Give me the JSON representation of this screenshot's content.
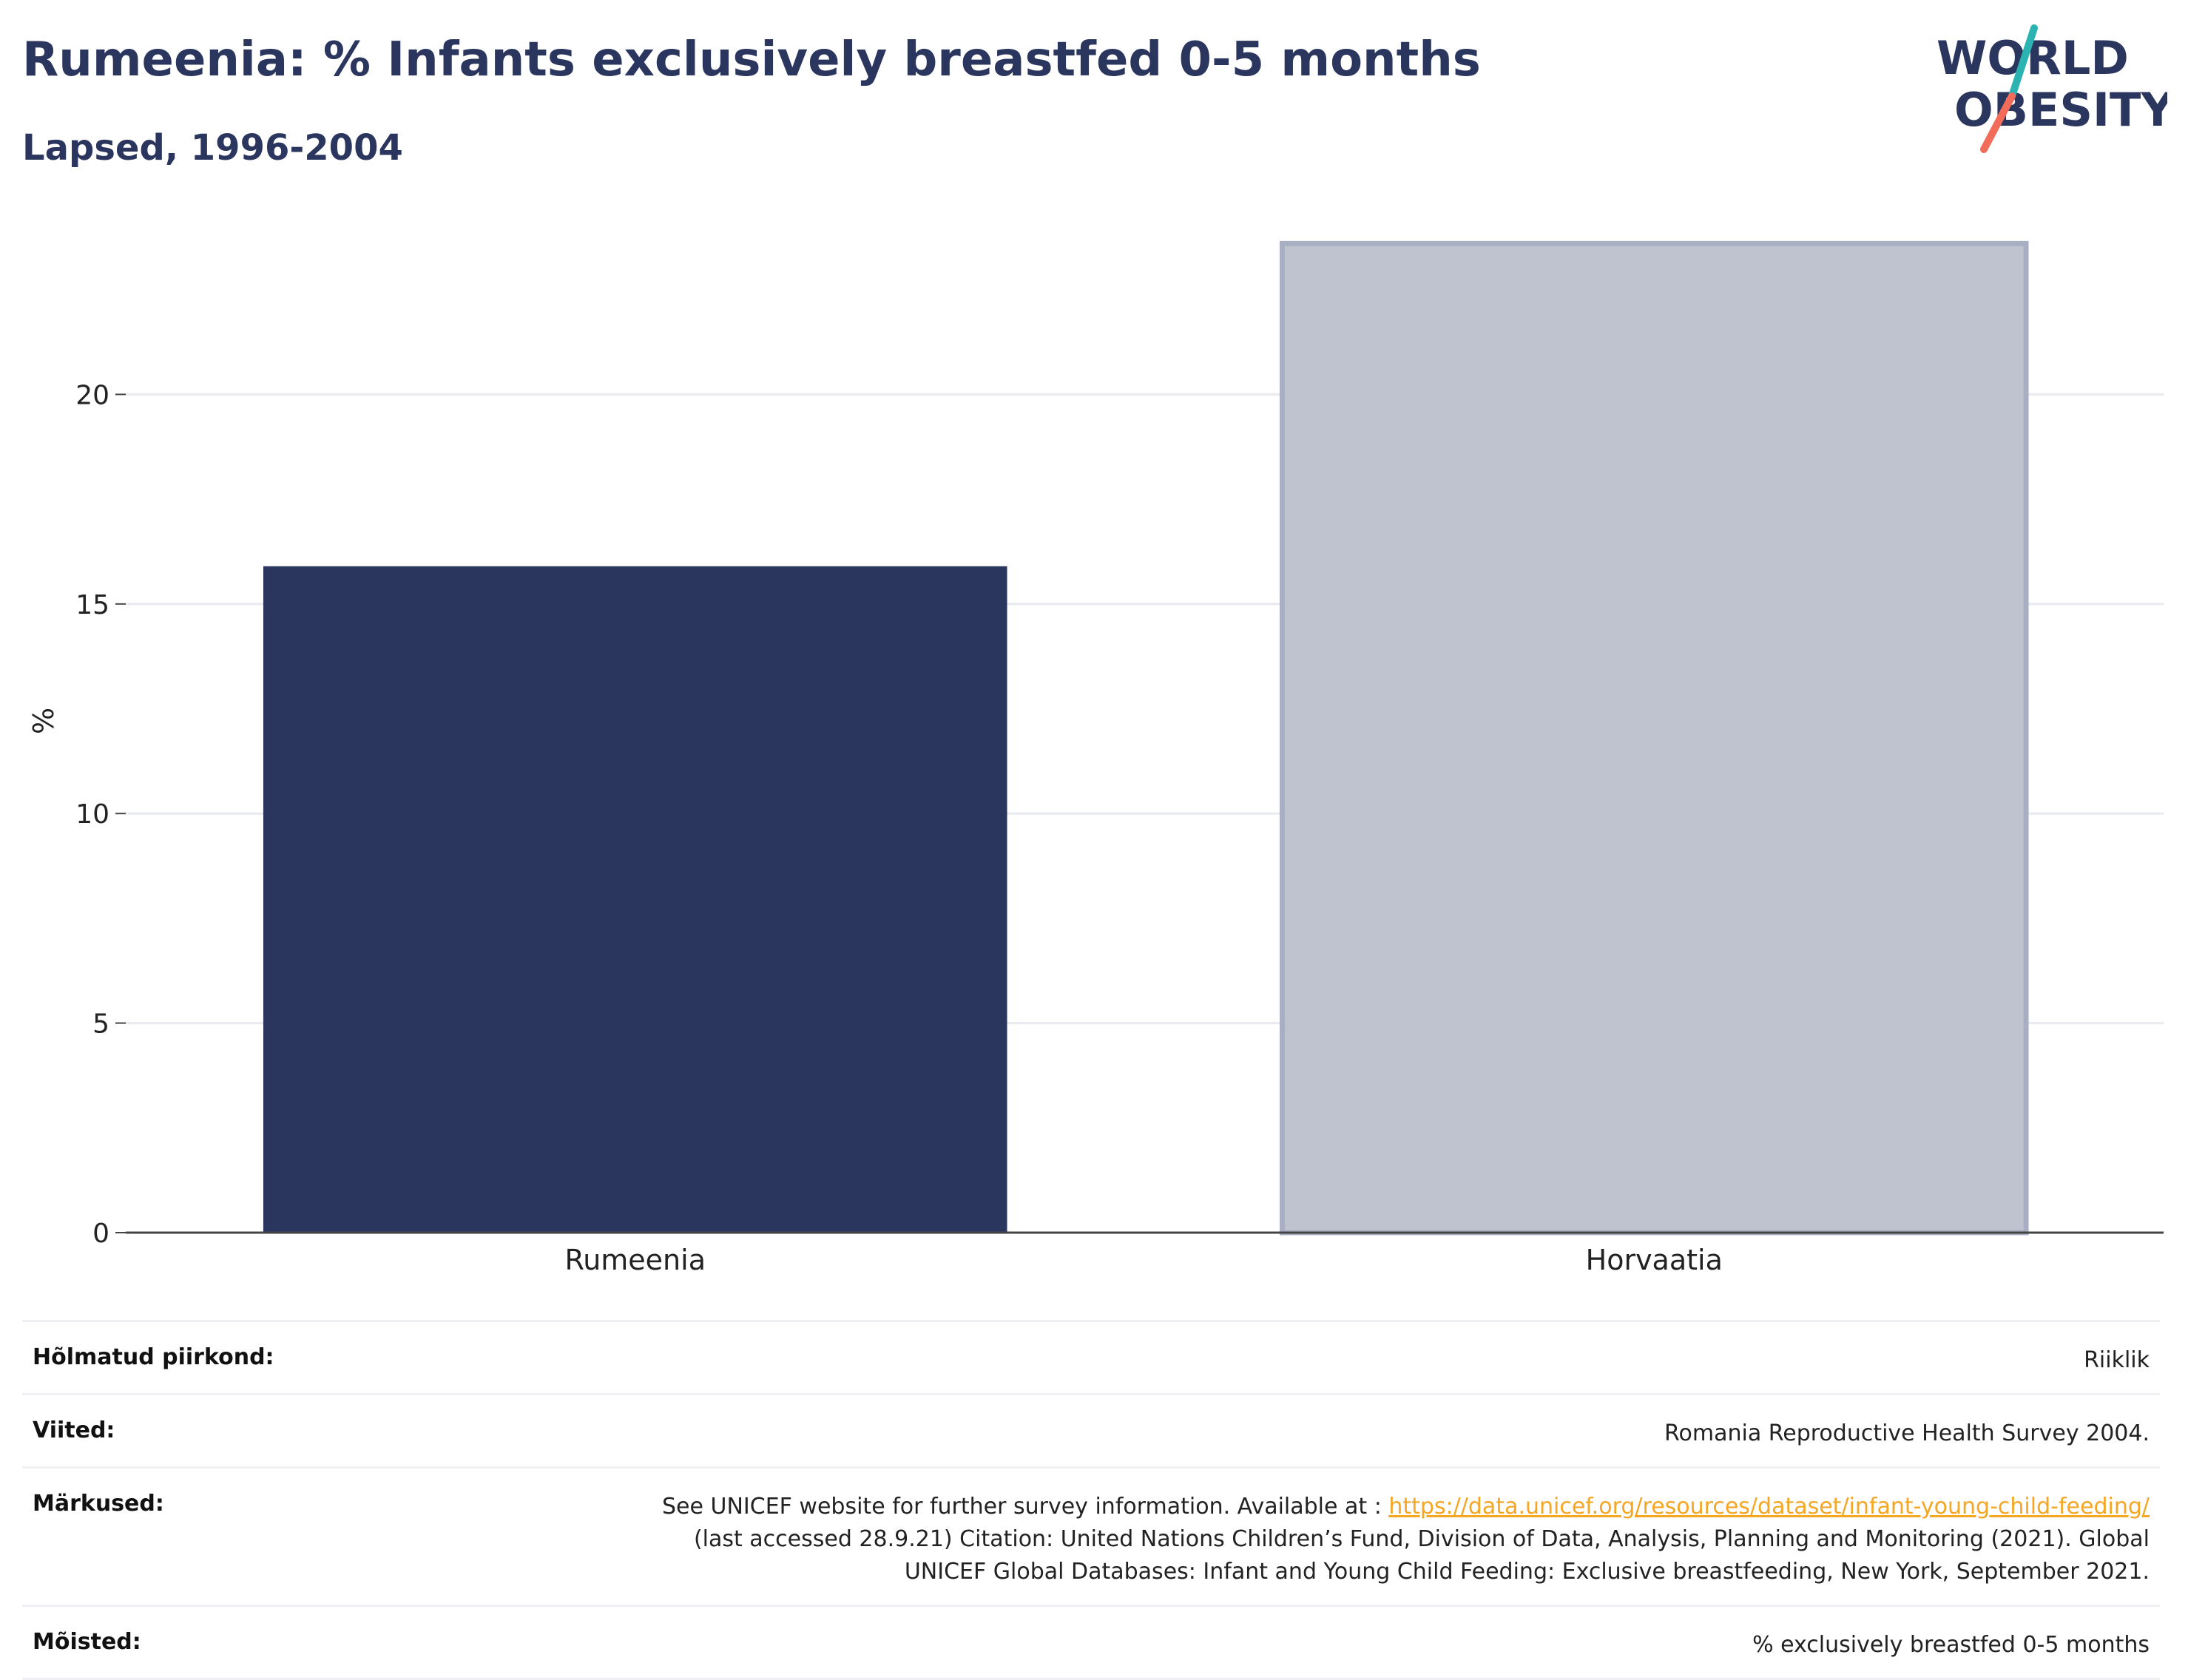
{
  "header": {
    "title": "Rumeenia: % Infants exclusively breastfed 0-5 months",
    "subtitle": "Lapsed, 1996-2004"
  },
  "logo": {
    "line1": "WORLD",
    "line2": "OBESITY",
    "colors": {
      "text": "#2b365f",
      "slash_top": "#2ab3b0",
      "slash_bottom": "#f26c5a"
    }
  },
  "chart_data": {
    "type": "bar",
    "categories": [
      "Rumeenia",
      "Horvaatia"
    ],
    "values": [
      15.9,
      23.6
    ],
    "colors": [
      "#2b365f",
      "#bfc3cf"
    ],
    "title": "Rumeenia: % Infants exclusively breastfed 0-5 months",
    "subtitle": "Lapsed, 1996-2004",
    "xlabel": "",
    "ylabel": "%",
    "ylim": [
      0,
      25
    ],
    "yticks": [
      0,
      5,
      10,
      15,
      20
    ],
    "grid": true
  },
  "meta": {
    "area_label": "Hõlmatud piirkond:",
    "area_value": "Riiklik",
    "refs_label": "Viited:",
    "refs_value": "Romania Reproductive Health Survey 2004.",
    "notes_label": "Märkused:",
    "notes_prefix": "See UNICEF website for further survey information. Available at : ",
    "notes_link": "https://data.unicef.org/resources/dataset/infant-young-child-feeding/",
    "notes_line2": "(last accessed 28.9.21) Citation: United Nations Children’s Fund, Division of Data, Analysis, Planning and Monitoring (2021). Global",
    "notes_line3": "UNICEF Global Databases: Infant and Young Child Feeding: Exclusive breastfeeding, New York, September 2021.",
    "defs_label": "Mõisted:",
    "defs_value": "% exclusively breastfed 0-5 months"
  }
}
